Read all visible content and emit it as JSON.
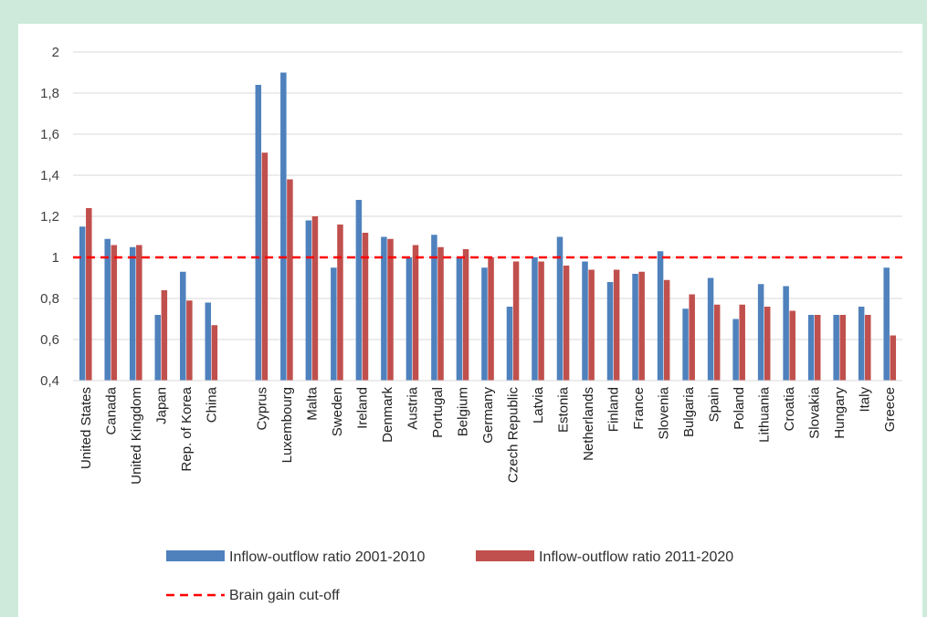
{
  "chart_data": {
    "type": "bar",
    "categories": [
      "United States",
      "Canada",
      "United Kingdom",
      "Japan",
      "Rep. of Korea",
      "China",
      "",
      "Cyprus",
      "Luxembourg",
      "Malta",
      "Sweden",
      "Ireland",
      "Denmark",
      "Austria",
      "Portugal",
      "Belgium",
      "Germany",
      "Czech Republic",
      "Latvia",
      "Estonia",
      "Netherlands",
      "Finland",
      "France",
      "Slovenia",
      "Bulgaria",
      "Spain",
      "Poland",
      "Lithuania",
      "Croatia",
      "Slovakia",
      "Hungary",
      "Italy",
      "Greece"
    ],
    "series": [
      {
        "name": "Inflow-outflow ratio 2001-2010",
        "color": "#4f81bd",
        "values": [
          1.15,
          1.09,
          1.05,
          0.72,
          0.93,
          0.78,
          null,
          1.84,
          1.9,
          1.18,
          0.95,
          1.28,
          1.1,
          1.0,
          1.11,
          1.0,
          0.95,
          0.76,
          1.0,
          1.1,
          0.98,
          0.88,
          0.92,
          1.03,
          0.75,
          0.9,
          0.7,
          0.87,
          0.86,
          0.72,
          0.72,
          0.76,
          0.95
        ]
      },
      {
        "name": "Inflow-outflow ratio 2011-2020",
        "color": "#c0504d",
        "values": [
          1.24,
          1.06,
          1.06,
          0.84,
          0.79,
          0.67,
          null,
          1.51,
          1.38,
          1.2,
          1.16,
          1.12,
          1.09,
          1.06,
          1.05,
          1.04,
          1.0,
          0.98,
          0.98,
          0.96,
          0.94,
          0.94,
          0.93,
          0.89,
          0.82,
          0.77,
          0.77,
          0.76,
          0.74,
          0.72,
          0.72,
          0.72,
          0.62
        ]
      }
    ],
    "reference_line": {
      "name": "Brain gain cut-off",
      "value": 1,
      "color": "#ff0000",
      "style": "dashed"
    },
    "ylim": [
      0.4,
      2
    ],
    "yticks": [
      "0,4",
      "0,6",
      "0,8",
      "1",
      "1,2",
      "1,4",
      "1,6",
      "1,8",
      "2"
    ],
    "ytick_values": [
      0.4,
      0.6,
      0.8,
      1,
      1.2,
      1.4,
      1.6,
      1.8,
      2
    ],
    "grid": true,
    "legend_position": "bottom"
  }
}
